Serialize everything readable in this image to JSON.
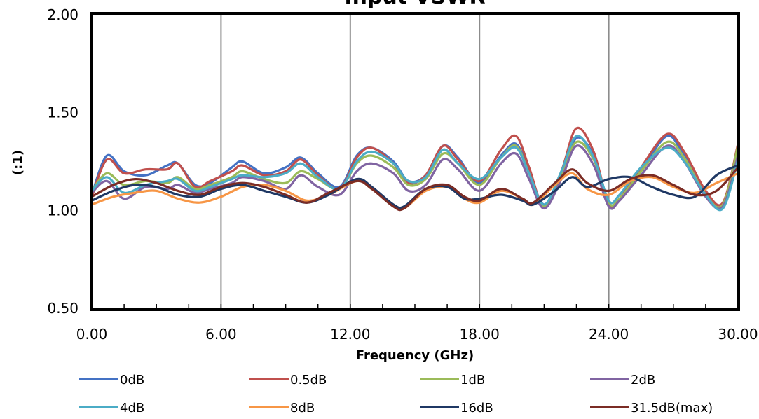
{
  "chart_data": {
    "type": "line",
    "title": "Input VSWR",
    "xlabel": "Frequency (GHz)",
    "ylabel": "(:1)",
    "xlim": [
      0,
      30
    ],
    "ylim": [
      0.5,
      2.0
    ],
    "x_ticks": [
      "0.00",
      "6.00",
      "12.00",
      "18.00",
      "24.00",
      "30.00"
    ],
    "y_ticks": [
      "0.50",
      "1.00",
      "1.50",
      "2.00"
    ],
    "grid": "vertical",
    "legend_position": "bottom",
    "series": [
      {
        "name": "0dB",
        "color": "#4472C4",
        "x": [
          0,
          0.7,
          1.5,
          2.5,
          3.5,
          4.0,
          4.8,
          5.5,
          6.5,
          7.0,
          8.0,
          9.0,
          9.7,
          10.5,
          11.5,
          12.3,
          13.0,
          14.0,
          14.7,
          15.5,
          16.3,
          17.0,
          18.0,
          19.0,
          19.7,
          20.3,
          21.0,
          21.8,
          22.5,
          23.3,
          24.0,
          24.5,
          25.5,
          26.7,
          27.5,
          28.5,
          29.3,
          30.0
        ],
        "y": [
          1.08,
          1.28,
          1.2,
          1.18,
          1.23,
          1.24,
          1.13,
          1.14,
          1.22,
          1.25,
          1.19,
          1.22,
          1.27,
          1.19,
          1.12,
          1.28,
          1.32,
          1.25,
          1.15,
          1.18,
          1.33,
          1.27,
          1.14,
          1.28,
          1.34,
          1.2,
          1.03,
          1.18,
          1.37,
          1.28,
          1.04,
          1.06,
          1.2,
          1.38,
          1.28,
          1.1,
          1.02,
          1.3
        ]
      },
      {
        "name": "0.5dB",
        "color": "#C0504D",
        "x": [
          0,
          0.7,
          1.5,
          2.5,
          3.5,
          4.0,
          4.8,
          5.5,
          6.5,
          7.0,
          8.0,
          9.0,
          9.7,
          10.5,
          11.5,
          12.3,
          13.0,
          14.0,
          14.7,
          15.5,
          16.3,
          17.0,
          18.0,
          19.0,
          19.7,
          20.3,
          21.0,
          21.8,
          22.5,
          23.3,
          24.0,
          24.5,
          25.5,
          26.7,
          27.5,
          28.5,
          29.3,
          30.0
        ],
        "y": [
          1.07,
          1.26,
          1.19,
          1.21,
          1.21,
          1.24,
          1.12,
          1.15,
          1.2,
          1.23,
          1.18,
          1.2,
          1.26,
          1.18,
          1.11,
          1.27,
          1.32,
          1.24,
          1.14,
          1.18,
          1.33,
          1.26,
          1.15,
          1.31,
          1.38,
          1.22,
          1.02,
          1.2,
          1.42,
          1.3,
          1.03,
          1.06,
          1.22,
          1.39,
          1.3,
          1.1,
          1.04,
          1.34
        ]
      },
      {
        "name": "1dB",
        "color": "#9BBB59",
        "x": [
          0,
          0.7,
          1.5,
          2.5,
          3.5,
          4.0,
          4.8,
          5.5,
          6.5,
          7.0,
          8.0,
          9.0,
          9.7,
          10.5,
          11.5,
          12.3,
          13.0,
          14.0,
          14.7,
          15.5,
          16.3,
          17.0,
          18.0,
          19.0,
          19.7,
          20.3,
          21.0,
          21.8,
          22.5,
          23.3,
          24.0,
          24.5,
          25.5,
          26.7,
          27.5,
          28.5,
          29.3,
          30.0
        ],
        "y": [
          1.1,
          1.19,
          1.13,
          1.15,
          1.14,
          1.17,
          1.11,
          1.13,
          1.17,
          1.2,
          1.16,
          1.14,
          1.2,
          1.16,
          1.11,
          1.24,
          1.28,
          1.22,
          1.13,
          1.16,
          1.29,
          1.24,
          1.13,
          1.27,
          1.33,
          1.19,
          1.02,
          1.18,
          1.35,
          1.26,
          1.04,
          1.06,
          1.2,
          1.35,
          1.27,
          1.08,
          1.03,
          1.33
        ]
      },
      {
        "name": "2dB",
        "color": "#8064A2",
        "x": [
          0,
          0.7,
          1.5,
          2.5,
          3.5,
          4.0,
          4.8,
          5.5,
          6.5,
          7.0,
          8.0,
          9.0,
          9.7,
          10.5,
          11.5,
          12.3,
          13.0,
          14.0,
          14.7,
          15.5,
          16.3,
          17.0,
          18.0,
          19.0,
          19.7,
          20.3,
          21.0,
          21.8,
          22.5,
          23.3,
          24.0,
          24.5,
          25.5,
          26.7,
          27.5,
          28.5,
          29.3,
          30.0
        ],
        "y": [
          1.09,
          1.15,
          1.06,
          1.12,
          1.11,
          1.13,
          1.09,
          1.11,
          1.14,
          1.17,
          1.15,
          1.11,
          1.18,
          1.12,
          1.08,
          1.2,
          1.24,
          1.19,
          1.1,
          1.13,
          1.26,
          1.21,
          1.1,
          1.24,
          1.29,
          1.16,
          1.01,
          1.16,
          1.33,
          1.23,
          1.02,
          1.05,
          1.18,
          1.33,
          1.25,
          1.07,
          1.02,
          1.28
        ]
      },
      {
        "name": "4dB",
        "color": "#4BACC6",
        "x": [
          0,
          0.7,
          1.5,
          2.5,
          3.5,
          4.0,
          4.8,
          5.5,
          6.5,
          7.0,
          8.0,
          9.0,
          9.7,
          10.5,
          11.5,
          12.3,
          13.0,
          14.0,
          14.7,
          15.5,
          16.3,
          17.0,
          18.0,
          19.0,
          19.7,
          20.3,
          21.0,
          21.8,
          22.5,
          23.3,
          24.0,
          24.5,
          25.5,
          26.7,
          27.5,
          28.5,
          29.3,
          30.0
        ],
        "y": [
          1.1,
          1.17,
          1.09,
          1.13,
          1.15,
          1.16,
          1.1,
          1.12,
          1.16,
          1.18,
          1.17,
          1.19,
          1.24,
          1.17,
          1.11,
          1.25,
          1.3,
          1.24,
          1.15,
          1.17,
          1.31,
          1.24,
          1.16,
          1.27,
          1.32,
          1.19,
          1.03,
          1.2,
          1.38,
          1.27,
          1.05,
          1.08,
          1.22,
          1.32,
          1.25,
          1.08,
          1.01,
          1.26
        ]
      },
      {
        "name": "8dB",
        "color": "#F79646",
        "x": [
          0,
          1.0,
          2.0,
          3.0,
          4.0,
          5.0,
          6.0,
          7.0,
          8.0,
          9.0,
          10.0,
          11.0,
          12.3,
          13.0,
          14.0,
          14.5,
          15.5,
          16.5,
          17.3,
          18.0,
          19.0,
          20.0,
          20.5,
          21.5,
          22.3,
          23.0,
          24.0,
          25.0,
          26.0,
          27.0,
          28.0,
          29.0,
          30.0
        ],
        "y": [
          1.03,
          1.07,
          1.09,
          1.1,
          1.06,
          1.04,
          1.07,
          1.12,
          1.13,
          1.1,
          1.05,
          1.08,
          1.15,
          1.11,
          1.03,
          1.01,
          1.1,
          1.12,
          1.06,
          1.04,
          1.1,
          1.06,
          1.03,
          1.13,
          1.19,
          1.11,
          1.08,
          1.15,
          1.17,
          1.12,
          1.09,
          1.14,
          1.19
        ]
      },
      {
        "name": "16dB",
        "color": "#1F3864",
        "x": [
          0,
          1.0,
          2.0,
          3.0,
          4.0,
          5.0,
          6.0,
          7.0,
          8.0,
          9.0,
          10.0,
          11.0,
          12.3,
          13.0,
          14.0,
          14.5,
          15.5,
          16.5,
          17.3,
          18.0,
          19.0,
          20.0,
          20.5,
          21.5,
          22.3,
          23.0,
          24.0,
          25.0,
          26.0,
          27.0,
          28.0,
          29.0,
          30.0
        ],
        "y": [
          1.05,
          1.1,
          1.13,
          1.12,
          1.08,
          1.07,
          1.11,
          1.13,
          1.1,
          1.07,
          1.04,
          1.08,
          1.16,
          1.12,
          1.03,
          1.02,
          1.11,
          1.12,
          1.06,
          1.06,
          1.08,
          1.05,
          1.03,
          1.1,
          1.17,
          1.12,
          1.16,
          1.17,
          1.12,
          1.08,
          1.07,
          1.18,
          1.23
        ]
      },
      {
        "name": "31.5dB(max)",
        "color": "#7B2C25",
        "x": [
          0,
          1.0,
          2.0,
          3.0,
          4.0,
          5.0,
          6.0,
          7.0,
          8.0,
          9.0,
          10.0,
          11.0,
          12.3,
          13.0,
          14.0,
          14.5,
          15.5,
          16.5,
          17.3,
          18.0,
          19.0,
          20.0,
          20.5,
          21.5,
          22.3,
          23.0,
          24.0,
          25.0,
          26.0,
          27.0,
          28.0,
          29.0,
          30.0
        ],
        "y": [
          1.07,
          1.13,
          1.16,
          1.14,
          1.1,
          1.08,
          1.12,
          1.14,
          1.12,
          1.08,
          1.04,
          1.09,
          1.15,
          1.11,
          1.02,
          1.01,
          1.11,
          1.13,
          1.07,
          1.05,
          1.11,
          1.06,
          1.04,
          1.14,
          1.21,
          1.14,
          1.1,
          1.16,
          1.18,
          1.13,
          1.08,
          1.1,
          1.22
        ]
      }
    ]
  }
}
